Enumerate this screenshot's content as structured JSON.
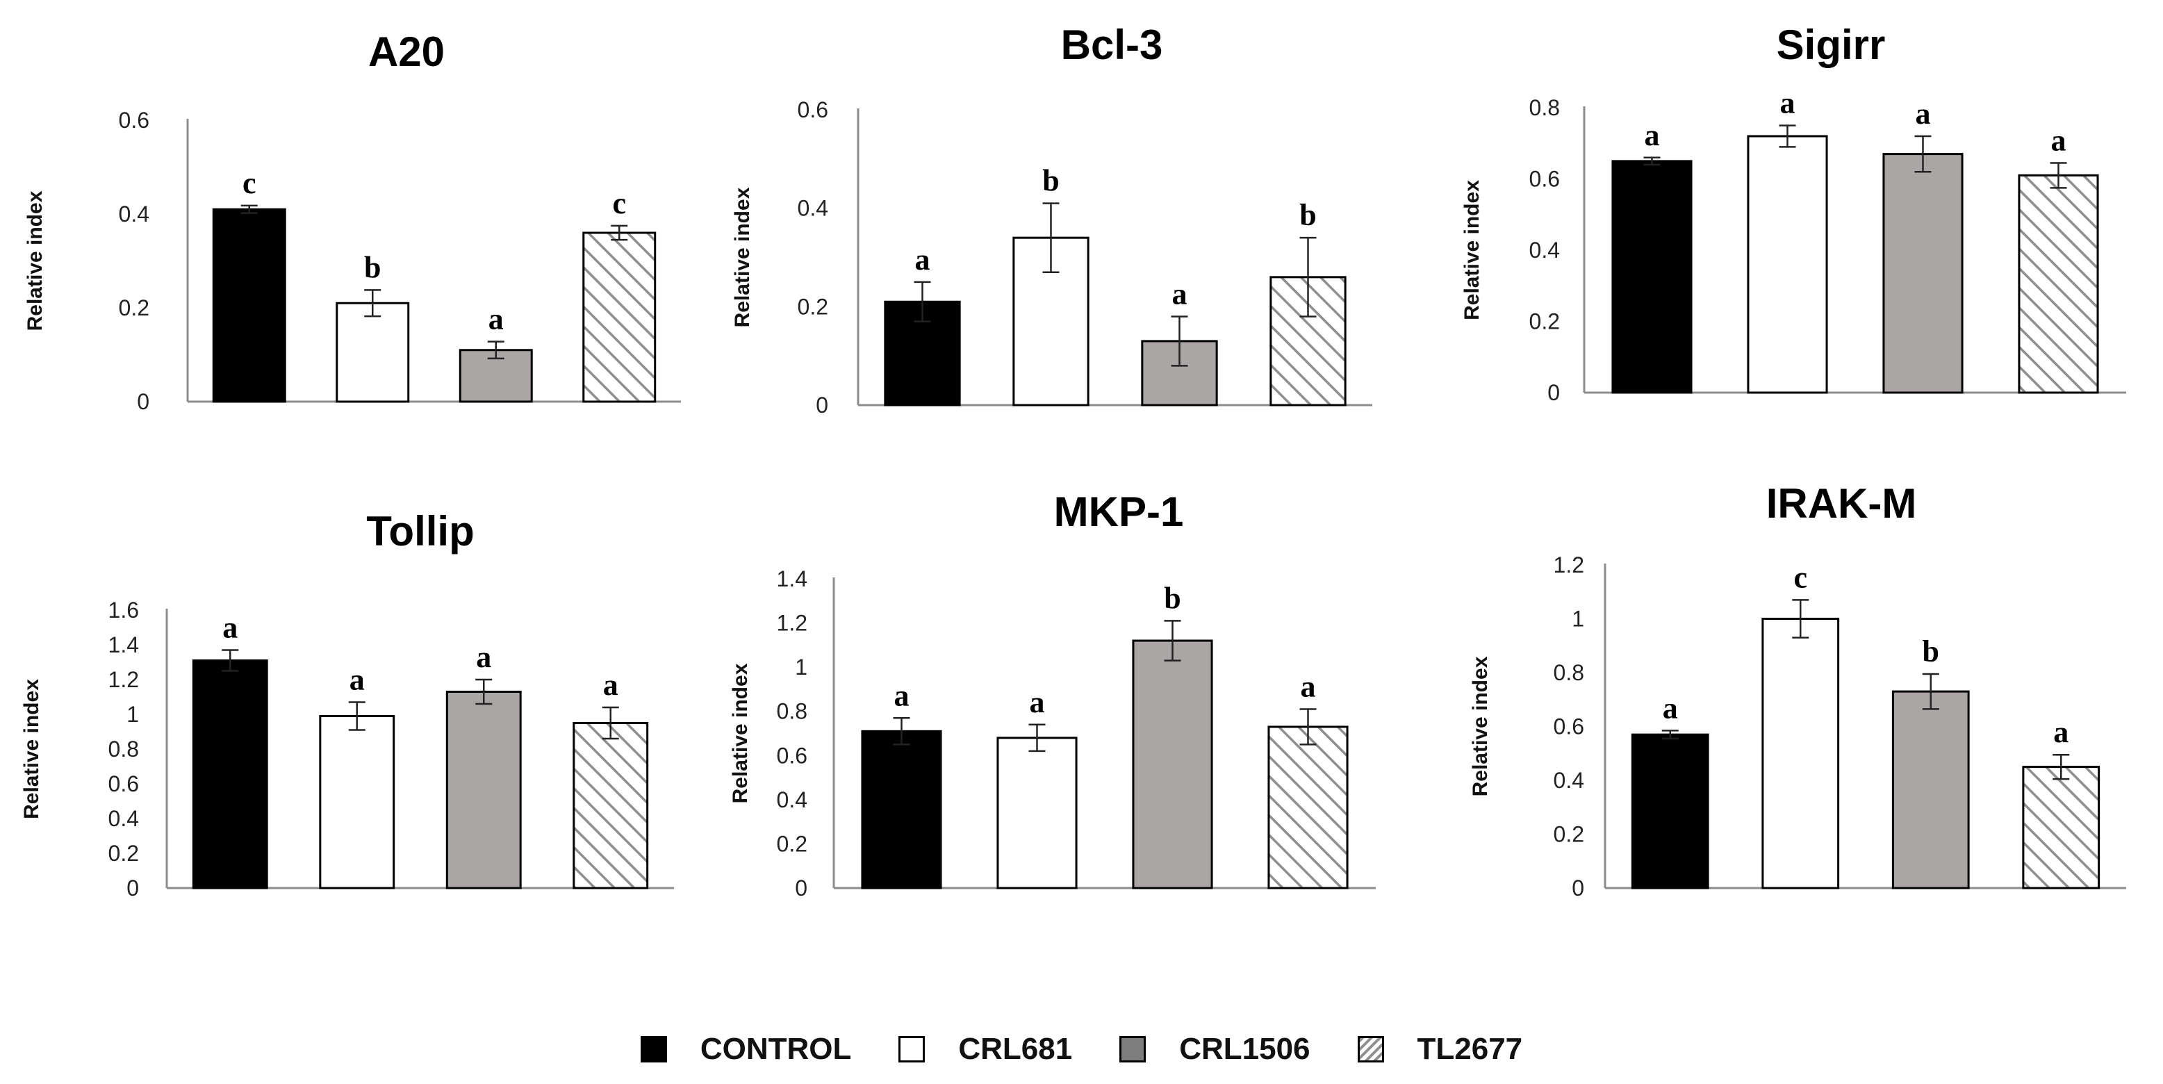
{
  "colors": {
    "CONTROL": "#000000",
    "CRL681": "#ffffff",
    "CRL1506": "#aaa6a5",
    "TL2677": "hatch",
    "axis": "#8c8c8c",
    "text": "#111111"
  },
  "legend": [
    {
      "key": "CONTROL",
      "label": "CONTROL"
    },
    {
      "key": "CRL681",
      "label": "CRL681"
    },
    {
      "key": "CRL1506",
      "label": "CRL1506"
    },
    {
      "key": "TL2677",
      "label": "TL2677"
    }
  ],
  "chart_data": [
    {
      "type": "bar",
      "title": "A20",
      "ylabel": "Relative index",
      "xlabel": "",
      "categories": [
        "CONTROL",
        "CRL681",
        "CRL1506",
        "TL2677"
      ],
      "values": [
        0.41,
        0.21,
        0.11,
        0.36
      ],
      "errors": [
        0.008,
        0.028,
        0.018,
        0.015
      ],
      "letters": [
        "c",
        "b",
        "a",
        "c"
      ],
      "ylim": [
        0,
        0.6
      ],
      "yticks": [
        "0",
        "0.2",
        "0.4",
        "0.6"
      ]
    },
    {
      "type": "bar",
      "title": "Bcl-3",
      "ylabel": "Relative index",
      "xlabel": "",
      "categories": [
        "CONTROL",
        "CRL681",
        "CRL1506",
        "TL2677"
      ],
      "values": [
        0.21,
        0.34,
        0.13,
        0.26
      ],
      "errors": [
        0.04,
        0.07,
        0.05,
        0.08
      ],
      "letters": [
        "a",
        "b",
        "a",
        "b"
      ],
      "ylim": [
        0,
        0.6
      ],
      "yticks": [
        "0",
        "0.2",
        "0.4",
        "0.6"
      ]
    },
    {
      "type": "bar",
      "title": "Sigirr",
      "ylabel": "Relative index",
      "xlabel": "",
      "categories": [
        "CONTROL",
        "CRL681",
        "CRL1506",
        "TL2677"
      ],
      "values": [
        0.65,
        0.72,
        0.67,
        0.61
      ],
      "errors": [
        0.01,
        0.03,
        0.05,
        0.035
      ],
      "letters": [
        "a",
        "a",
        "a",
        "a"
      ],
      "ylim": [
        0,
        0.8
      ],
      "yticks": [
        "0",
        "0.2",
        "0.4",
        "0.6",
        "0.8"
      ]
    },
    {
      "type": "bar",
      "title": "Tollip",
      "ylabel": "Relative index",
      "xlabel": "",
      "categories": [
        "CONTROL",
        "CRL681",
        "CRL1506",
        "TL2677"
      ],
      "values": [
        1.31,
        0.99,
        1.13,
        0.95
      ],
      "errors": [
        0.06,
        0.08,
        0.07,
        0.09
      ],
      "letters": [
        "a",
        "a",
        "a",
        "a"
      ],
      "ylim": [
        0,
        1.6
      ],
      "yticks": [
        "0",
        "0.2",
        "0.4",
        "0.6",
        "0.8",
        "1",
        "1.2",
        "1.4",
        "1.6"
      ]
    },
    {
      "type": "bar",
      "title": "MKP-1",
      "ylabel": "Relative index",
      "xlabel": "",
      "categories": [
        "CONTROL",
        "CRL681",
        "CRL1506",
        "TL2677"
      ],
      "values": [
        0.71,
        0.68,
        1.12,
        0.73
      ],
      "errors": [
        0.06,
        0.06,
        0.09,
        0.08
      ],
      "letters": [
        "a",
        "a",
        "b",
        "a"
      ],
      "ylim": [
        0,
        1.4
      ],
      "yticks": [
        "0",
        "0.2",
        "0.4",
        "0.6",
        "0.8",
        "1",
        "1.2",
        "1.4"
      ]
    },
    {
      "type": "bar",
      "title": "IRAK-M",
      "ylabel": "Relative index",
      "xlabel": "",
      "categories": [
        "CONTROL",
        "CRL681",
        "CRL1506",
        "TL2677"
      ],
      "values": [
        0.57,
        1.0,
        0.73,
        0.45
      ],
      "errors": [
        0.015,
        0.07,
        0.065,
        0.045
      ],
      "letters": [
        "a",
        "c",
        "b",
        "a"
      ],
      "ylim": [
        0,
        1.2
      ],
      "yticks": [
        "0",
        "0.2",
        "0.4",
        "0.6",
        "0.8",
        "1",
        "1.2"
      ]
    }
  ]
}
